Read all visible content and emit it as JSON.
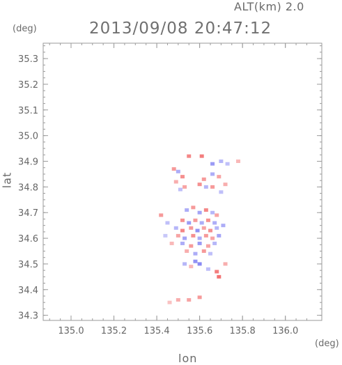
{
  "header": {
    "altitude_label": "ALT(km)  2.0",
    "timestamp": "2013/09/08 20:47:12"
  },
  "chart_data": {
    "type": "heatmap",
    "title": "2013/09/08 20:47:12",
    "xlabel": "lon",
    "ylabel": "lat",
    "x_unit": "(deg)",
    "y_unit": "(deg)",
    "xlim": [
      134.87,
      136.17
    ],
    "ylim": [
      34.28,
      35.36
    ],
    "x_ticks": [
      "135.0",
      "135.2",
      "135.4",
      "135.6",
      "135.8",
      "136.0"
    ],
    "x_tick_values": [
      135.0,
      135.2,
      135.4,
      135.6,
      135.8,
      136.0
    ],
    "y_ticks": [
      "34.3",
      "34.4",
      "34.5",
      "34.6",
      "34.7",
      "34.8",
      "34.9",
      "35.0",
      "35.1",
      "35.2",
      "35.3"
    ],
    "y_tick_values": [
      34.3,
      34.4,
      34.5,
      34.6,
      34.7,
      34.8,
      34.9,
      35.0,
      35.1,
      35.2,
      35.3
    ],
    "colors": {
      "positive": "#f05a5a",
      "negative": "#6a6af0",
      "axis": "#9a9a9a"
    },
    "cells": [
      {
        "lon": 135.48,
        "lat": 34.87,
        "v": 0.6
      },
      {
        "lon": 135.5,
        "lat": 34.86,
        "v": -0.5
      },
      {
        "lon": 135.52,
        "lat": 34.84,
        "v": 0.7
      },
      {
        "lon": 135.49,
        "lat": 34.82,
        "v": 0.4
      },
      {
        "lon": 135.53,
        "lat": 34.8,
        "v": 0.5
      },
      {
        "lon": 135.51,
        "lat": 34.79,
        "v": -0.3
      },
      {
        "lon": 135.55,
        "lat": 34.92,
        "v": 0.8
      },
      {
        "lon": 135.61,
        "lat": 34.92,
        "v": 0.9
      },
      {
        "lon": 135.66,
        "lat": 34.89,
        "v": -0.7
      },
      {
        "lon": 135.7,
        "lat": 34.9,
        "v": -0.4
      },
      {
        "lon": 135.73,
        "lat": 34.89,
        "v": -0.3
      },
      {
        "lon": 135.78,
        "lat": 34.9,
        "v": 0.3
      },
      {
        "lon": 135.66,
        "lat": 34.85,
        "v": -0.5
      },
      {
        "lon": 135.62,
        "lat": 34.83,
        "v": 0.6
      },
      {
        "lon": 135.6,
        "lat": 34.81,
        "v": 0.7
      },
      {
        "lon": 135.63,
        "lat": 34.8,
        "v": -0.4
      },
      {
        "lon": 135.69,
        "lat": 34.84,
        "v": 0.5
      },
      {
        "lon": 135.72,
        "lat": 34.81,
        "v": 0.4
      },
      {
        "lon": 135.66,
        "lat": 34.8,
        "v": 0.6
      },
      {
        "lon": 135.7,
        "lat": 34.78,
        "v": -0.3
      },
      {
        "lon": 135.42,
        "lat": 34.69,
        "v": 0.6
      },
      {
        "lon": 135.54,
        "lat": 34.71,
        "v": -0.5
      },
      {
        "lon": 135.57,
        "lat": 34.72,
        "v": 0.6
      },
      {
        "lon": 135.6,
        "lat": 34.7,
        "v": -0.6
      },
      {
        "lon": 135.63,
        "lat": 34.71,
        "v": 0.8
      },
      {
        "lon": 135.66,
        "lat": 34.7,
        "v": -0.4
      },
      {
        "lon": 135.68,
        "lat": 34.69,
        "v": 0.5
      },
      {
        "lon": 135.52,
        "lat": 34.67,
        "v": 0.7
      },
      {
        "lon": 135.55,
        "lat": 34.66,
        "v": -0.7
      },
      {
        "lon": 135.58,
        "lat": 34.67,
        "v": 0.6
      },
      {
        "lon": 135.61,
        "lat": 34.66,
        "v": -0.5
      },
      {
        "lon": 135.64,
        "lat": 34.67,
        "v": 0.7
      },
      {
        "lon": 135.67,
        "lat": 34.66,
        "v": -0.5
      },
      {
        "lon": 135.49,
        "lat": 34.64,
        "v": -0.4
      },
      {
        "lon": 135.52,
        "lat": 34.63,
        "v": 0.8
      },
      {
        "lon": 135.56,
        "lat": 34.64,
        "v": 0.6
      },
      {
        "lon": 135.59,
        "lat": 34.63,
        "v": -0.8
      },
      {
        "lon": 135.62,
        "lat": 34.64,
        "v": 0.5
      },
      {
        "lon": 135.65,
        "lat": 34.63,
        "v": 0.7
      },
      {
        "lon": 135.68,
        "lat": 34.64,
        "v": -0.4
      },
      {
        "lon": 135.71,
        "lat": 34.65,
        "v": -0.5
      },
      {
        "lon": 135.5,
        "lat": 34.61,
        "v": 0.5
      },
      {
        "lon": 135.53,
        "lat": 34.6,
        "v": -0.6
      },
      {
        "lon": 135.57,
        "lat": 34.61,
        "v": 0.7
      },
      {
        "lon": 135.6,
        "lat": 34.6,
        "v": -0.5
      },
      {
        "lon": 135.63,
        "lat": 34.61,
        "v": 0.6
      },
      {
        "lon": 135.66,
        "lat": 34.6,
        "v": 0.5
      },
      {
        "lon": 135.69,
        "lat": 34.61,
        "v": -0.6
      },
      {
        "lon": 135.52,
        "lat": 34.58,
        "v": -0.5
      },
      {
        "lon": 135.56,
        "lat": 34.57,
        "v": 0.6
      },
      {
        "lon": 135.6,
        "lat": 34.58,
        "v": -0.7
      },
      {
        "lon": 135.64,
        "lat": 34.57,
        "v": 0.5
      },
      {
        "lon": 135.67,
        "lat": 34.58,
        "v": -0.4
      },
      {
        "lon": 135.54,
        "lat": 34.55,
        "v": 0.4
      },
      {
        "lon": 135.58,
        "lat": 34.54,
        "v": -0.5
      },
      {
        "lon": 135.62,
        "lat": 34.55,
        "v": 0.6
      },
      {
        "lon": 135.65,
        "lat": 34.54,
        "v": -0.3
      },
      {
        "lon": 135.45,
        "lat": 34.66,
        "v": -0.3
      },
      {
        "lon": 135.44,
        "lat": 34.61,
        "v": -0.2
      },
      {
        "lon": 135.47,
        "lat": 34.58,
        "v": 0.3
      },
      {
        "lon": 135.58,
        "lat": 34.51,
        "v": -0.8
      },
      {
        "lon": 135.6,
        "lat": 34.5,
        "v": -0.9
      },
      {
        "lon": 135.53,
        "lat": 34.5,
        "v": -0.4
      },
      {
        "lon": 135.56,
        "lat": 34.49,
        "v": 0.3
      },
      {
        "lon": 135.68,
        "lat": 34.47,
        "v": 0.9
      },
      {
        "lon": 135.69,
        "lat": 34.45,
        "v": 1.0
      },
      {
        "lon": 135.72,
        "lat": 34.5,
        "v": 0.4
      },
      {
        "lon": 135.64,
        "lat": 34.48,
        "v": -0.3
      },
      {
        "lon": 135.5,
        "lat": 34.36,
        "v": 0.4
      },
      {
        "lon": 135.55,
        "lat": 34.36,
        "v": 0.5
      },
      {
        "lon": 135.6,
        "lat": 34.37,
        "v": 0.6
      },
      {
        "lon": 135.46,
        "lat": 34.35,
        "v": 0.2
      }
    ]
  }
}
